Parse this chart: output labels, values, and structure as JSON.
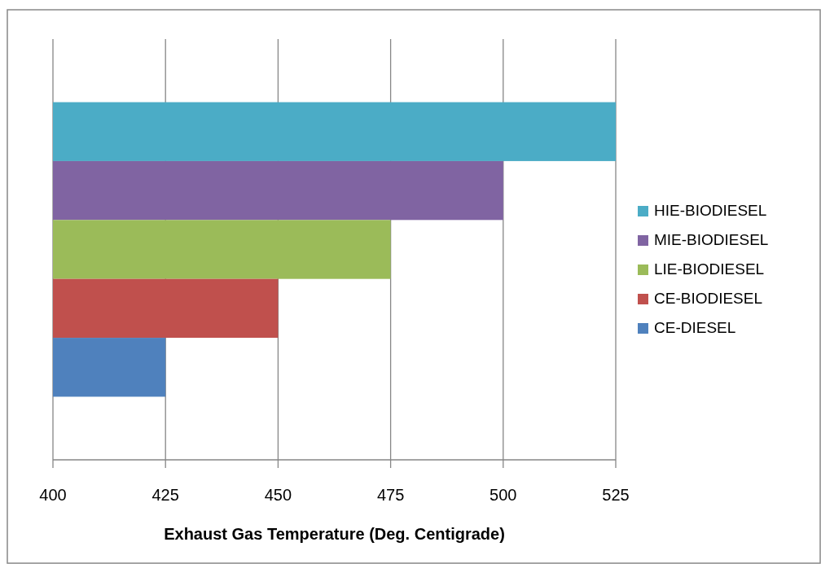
{
  "chart_data": {
    "type": "bar",
    "orientation": "horizontal",
    "xlabel": "Exhaust Gas Temperature (Deg. Centigrade)",
    "categories": [
      null
    ],
    "series": [
      {
        "name": "HIE-BIODIESEL",
        "color": "#4bacc6",
        "values": [
          525
        ]
      },
      {
        "name": "MIE-BIODIESEL",
        "color": "#8064a2",
        "values": [
          500
        ]
      },
      {
        "name": "LIE-BIODIESEL",
        "color": "#9bbb59",
        "values": [
          475
        ]
      },
      {
        "name": "CE-BIODIESEL",
        "color": "#c0504d",
        "values": [
          450
        ]
      },
      {
        "name": "CE-DIESEL",
        "color": "#4f81bd",
        "values": [
          425
        ]
      }
    ],
    "xlim": [
      400,
      525
    ],
    "xticks": [
      400,
      425,
      450,
      475,
      500,
      525
    ],
    "grid": "x",
    "legend": "right"
  }
}
